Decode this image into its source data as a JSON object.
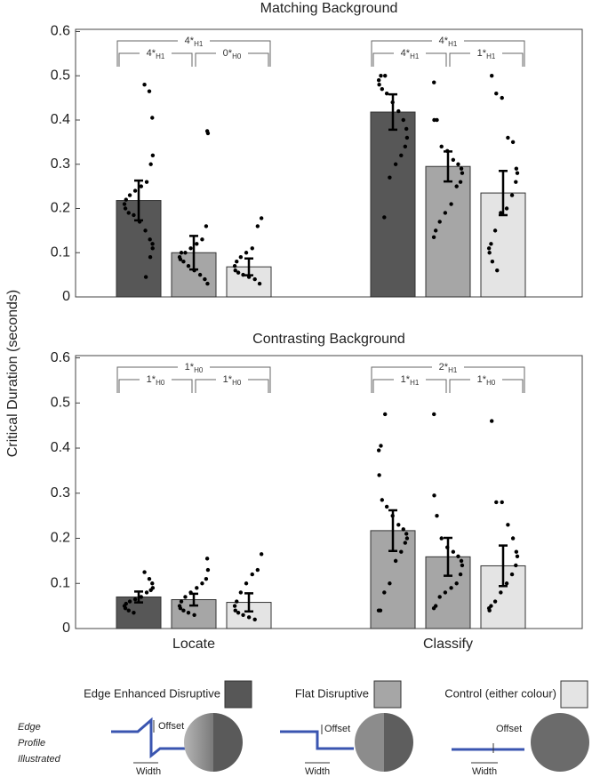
{
  "chart_data": [
    {
      "type": "bar",
      "title": "Matching Background",
      "ylabel": "Critical Duration (seconds)",
      "categories": [
        null,
        null
      ],
      "ylim": [
        0,
        0.605
      ],
      "yticks": [
        0,
        0.1,
        0.2,
        0.3,
        0.4,
        0.5,
        0.6
      ],
      "series": [
        {
          "name": "Edge Enhanced Disruptive",
          "color": "#575757",
          "values": [
            0.218,
            0.418
          ],
          "errors": [
            0.045,
            0.04
          ],
          "points": [
            [
              0.48,
              0.465,
              0.405,
              0.32,
              0.3,
              0.26,
              0.25,
              0.24,
              0.23,
              0.22,
              0.21,
              0.2,
              0.19,
              0.185,
              0.17,
              0.15,
              0.13,
              0.12,
              0.11,
              0.09,
              0.045
            ],
            [
              0.5,
              0.5,
              0.49,
              0.48,
              0.47,
              0.46,
              0.44,
              0.42,
              0.4,
              0.38,
              0.36,
              0.34,
              0.32,
              0.3,
              0.27,
              0.18
            ]
          ]
        },
        {
          "name": "Flat Disruptive",
          "color": "#a6a6a6",
          "values": [
            0.1,
            0.295
          ],
          "errors": [
            0.038,
            0.034
          ],
          "points": [
            [
              0.375,
              0.37,
              0.16,
              0.13,
              0.12,
              0.11,
              0.1,
              0.1,
              0.09,
              0.085,
              0.08,
              0.07,
              0.06,
              0.05,
              0.04,
              0.03
            ],
            [
              0.485,
              0.4,
              0.4,
              0.34,
              0.33,
              0.31,
              0.3,
              0.29,
              0.28,
              0.26,
              0.25,
              0.21,
              0.19,
              0.17,
              0.15,
              0.135
            ]
          ]
        },
        {
          "name": "Control (either colour)",
          "color": "#e4e4e4",
          "values": [
            0.068,
            0.235
          ],
          "errors": [
            0.019,
            0.05
          ],
          "points": [
            [
              0.178,
              0.16,
              0.11,
              0.1,
              0.09,
              0.08,
              0.07,
              0.06,
              0.055,
              0.05,
              0.045,
              0.04,
              0.03
            ],
            [
              0.5,
              0.46,
              0.45,
              0.36,
              0.35,
              0.29,
              0.28,
              0.26,
              0.23,
              0.2,
              0.19,
              0.15,
              0.12,
              0.11,
              0.1,
              0.08,
              0.06
            ]
          ]
        }
      ],
      "brackets": [
        [
          {
            "label": "4*",
            "sub": "H1"
          },
          {
            "label": "0*",
            "sub": "H0"
          },
          {
            "label": "4*",
            "sub": "H1"
          }
        ],
        [
          {
            "label": "4*",
            "sub": "H1"
          },
          {
            "label": "1*",
            "sub": "H1"
          },
          {
            "label": "4*",
            "sub": "H1"
          }
        ]
      ]
    },
    {
      "type": "bar",
      "title": "Contrasting Background",
      "categories": [
        "Locate",
        "Classify"
      ],
      "ylim": [
        0,
        0.605
      ],
      "yticks": [
        0,
        0.1,
        0.2,
        0.3,
        0.4,
        0.5,
        0.6
      ],
      "series": [
        {
          "colors": [
            "#575757",
            "#a6a6a6"
          ],
          "values": [
            0.07,
            0.217
          ],
          "errors": [
            0.012,
            0.045
          ],
          "points": [
            [
              0.125,
              0.11,
              0.1,
              0.09,
              0.085,
              0.08,
              0.07,
              0.065,
              0.06,
              0.055,
              0.05,
              0.045,
              0.04,
              0.035
            ],
            [
              0.475,
              0.405,
              0.395,
              0.34,
              0.285,
              0.27,
              0.25,
              0.23,
              0.22,
              0.21,
              0.2,
              0.19,
              0.17,
              0.15,
              0.1,
              0.08,
              0.04,
              0.04
            ]
          ]
        },
        {
          "colors": [
            "#a6a6a6",
            "#a6a6a6"
          ],
          "values": [
            0.064,
            0.159
          ],
          "errors": [
            0.013,
            0.042
          ],
          "points": [
            [
              0.155,
              0.13,
              0.11,
              0.1,
              0.09,
              0.08,
              0.07,
              0.06,
              0.05,
              0.045,
              0.04,
              0.035,
              0.03
            ],
            [
              0.475,
              0.295,
              0.25,
              0.2,
              0.18,
              0.17,
              0.16,
              0.15,
              0.14,
              0.12,
              0.1,
              0.09,
              0.08,
              0.07,
              0.05,
              0.045
            ]
          ]
        },
        {
          "colors": [
            "#e4e4e4",
            "#e4e4e4"
          ],
          "values": [
            0.058,
            0.139
          ],
          "errors": [
            0.02,
            0.045
          ],
          "points": [
            [
              0.165,
              0.13,
              0.12,
              0.1,
              0.08,
              0.06,
              0.05,
              0.04,
              0.035,
              0.03,
              0.025,
              0.02
            ],
            [
              0.46,
              0.28,
              0.28,
              0.23,
              0.2,
              0.17,
              0.16,
              0.14,
              0.12,
              0.1,
              0.08,
              0.06,
              0.05,
              0.045,
              0.04
            ]
          ]
        }
      ],
      "brackets": [
        [
          {
            "label": "1*",
            "sub": "H0"
          },
          {
            "label": "1*",
            "sub": "H0"
          },
          {
            "label": "1*",
            "sub": "H0"
          }
        ],
        [
          {
            "label": "1*",
            "sub": "H1"
          },
          {
            "label": "1*",
            "sub": "H0"
          },
          {
            "label": "2*",
            "sub": "H1"
          }
        ]
      ]
    }
  ],
  "illustration": {
    "caption": [
      "Edge",
      "Profile",
      "Illustrated"
    ],
    "offset": "Offset",
    "width": "Width"
  }
}
